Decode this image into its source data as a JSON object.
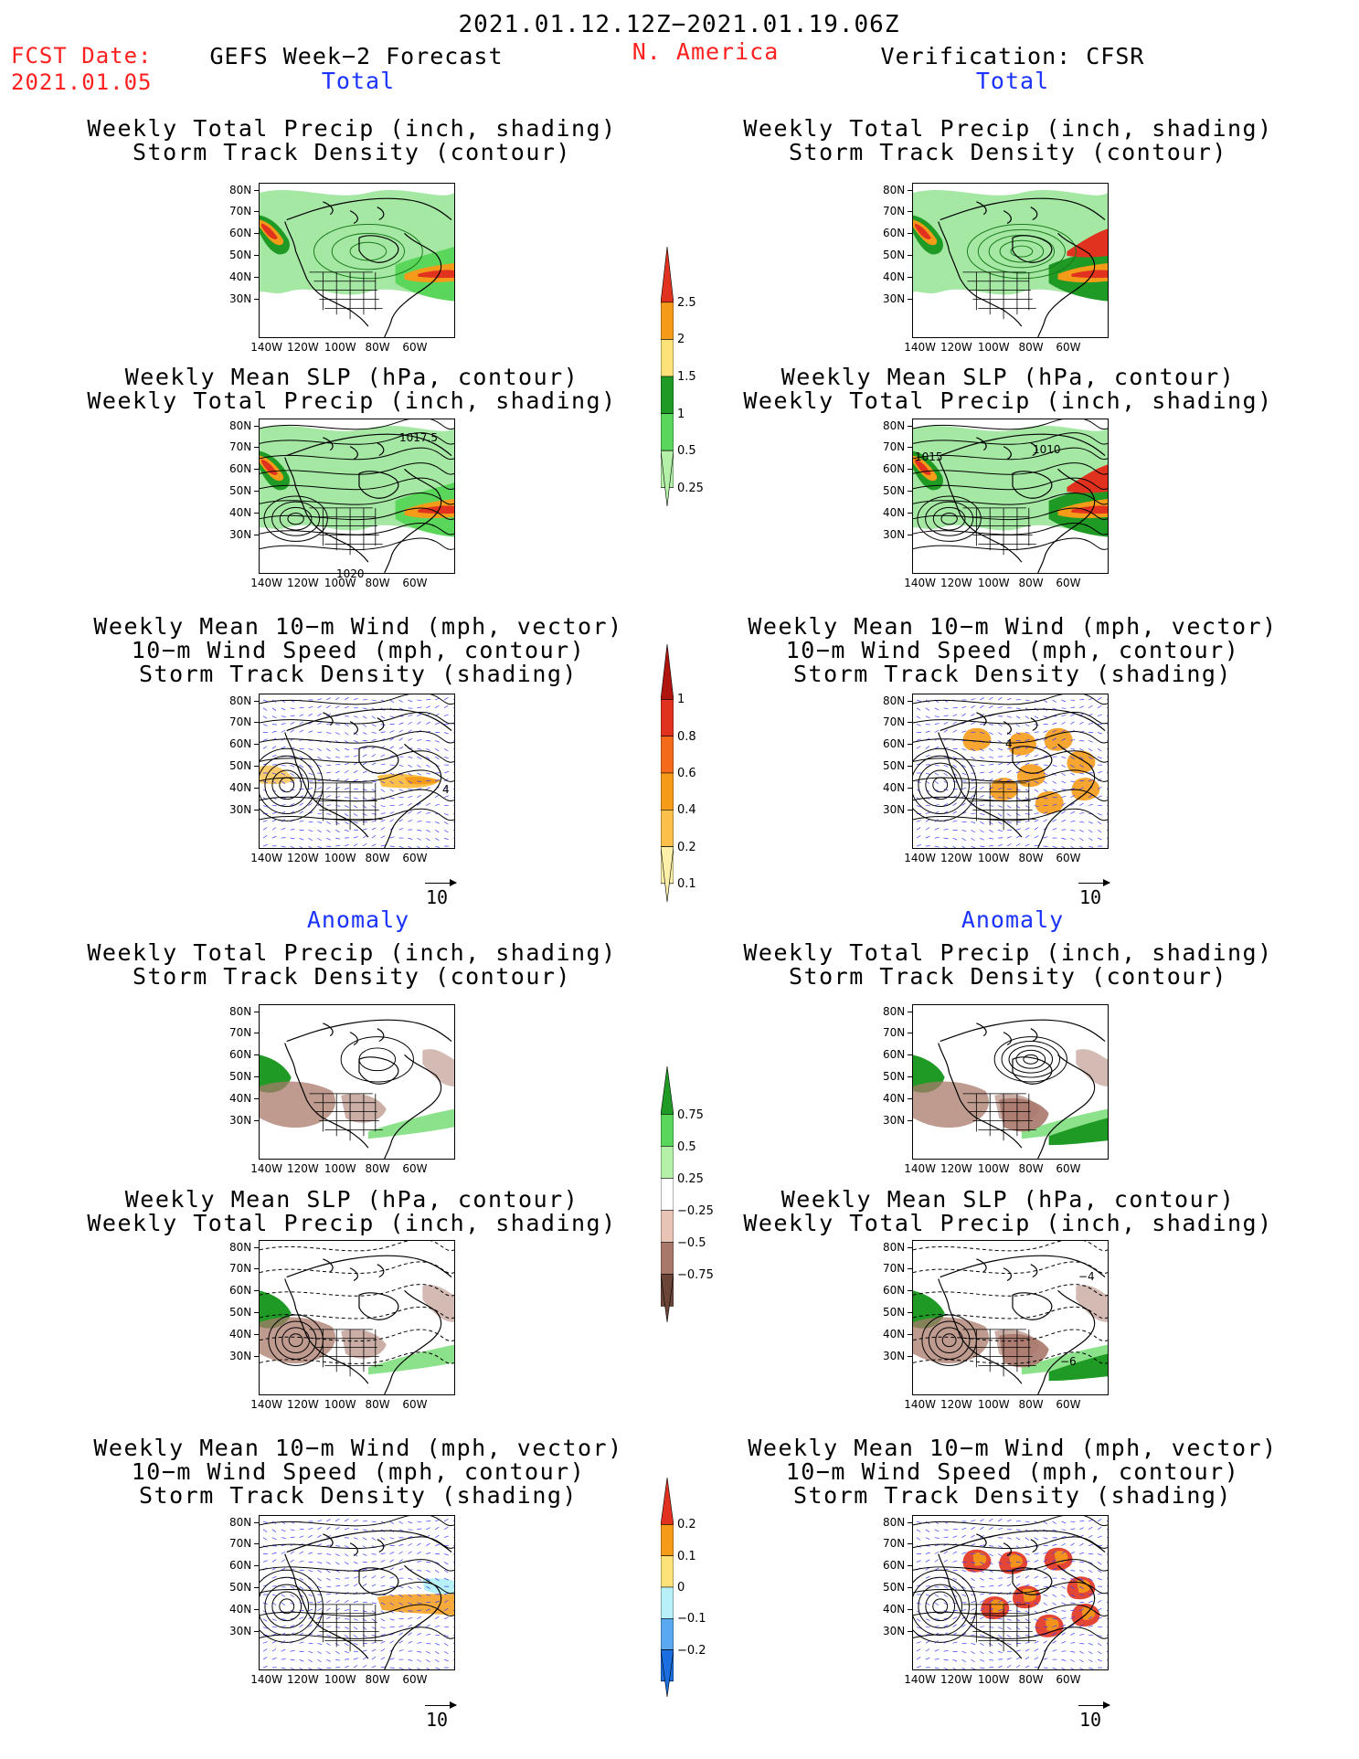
{
  "header": {
    "period": "2021.01.12.12Z−2021.01.19.06Z",
    "fcst_label": "FCST Date:",
    "fcst_date": "2021.01.05",
    "left_title": "GEFS Week−2 Forecast",
    "region": "N. America",
    "right_title": "Verification: CFSR"
  },
  "sections": {
    "total": "Total",
    "anomaly": "Anomaly"
  },
  "panel_titles": {
    "precip_storm": [
      "Weekly Total Precip (inch, shading)",
      "Storm Track Density (contour)"
    ],
    "slp_precip": [
      "Weekly Mean SLP (hPa, contour)",
      "Weekly Total Precip (inch, shading)"
    ],
    "wind_storm": [
      "Weekly Mean 10−m Wind (mph, vector)",
      "10−m Wind Speed (mph, contour)",
      "Storm Track Density (shading)"
    ]
  },
  "axes": {
    "lat_labels": [
      "80N",
      "70N",
      "60N",
      "50N",
      "40N",
      "30N"
    ],
    "lon_labels": [
      "140W",
      "120W",
      "100W",
      "80W",
      "60W"
    ]
  },
  "contour_labels": {
    "fcst_slp_high": "1017.5",
    "fcst_slp_low": "1020",
    "verif_slp_high": "1010",
    "verif_slp_left": "1015",
    "verif_anom_slp_a": "−4",
    "verif_anom_slp_b": "−6",
    "fcst_wind_a": "4",
    "verif_wind_a": "4"
  },
  "vector_reference": "10",
  "colorbars": {
    "precip_total": {
      "labels": [
        "2.5",
        "2",
        "1.5",
        "1",
        "0.5",
        "0.25"
      ],
      "colors": [
        "#e0321e",
        "#f59b1a",
        "#fde27a",
        "#1f9a24",
        "#5ad65a",
        "#b5f0a8"
      ]
    },
    "storm_total": {
      "labels": [
        "1",
        "0.8",
        "0.6",
        "0.4",
        "0.2",
        "0.1"
      ],
      "colors": [
        "#b0140e",
        "#e0321e",
        "#f26a1a",
        "#f59b1a",
        "#fbc04a",
        "#fdf0a8"
      ]
    },
    "precip_anom": {
      "labels": [
        "0.75",
        "0.5",
        "0.25",
        "−0.25",
        "−0.5",
        "−0.75"
      ],
      "colors": [
        "#1f9a24",
        "#5ad65a",
        "#b5f0a8",
        "#ffffff",
        "#e8c4b4",
        "#a8786a",
        "#6b4538"
      ]
    },
    "storm_anom": {
      "labels": [
        "0.2",
        "0.1",
        "0",
        "−0.1",
        "−0.2"
      ],
      "colors": [
        "#e0321e",
        "#f59b1a",
        "#fde27a",
        "#b8f0f8",
        "#5aa8f0",
        "#1a6ee0"
      ]
    }
  },
  "colors": {
    "accent_red": "#ff2020",
    "accent_blue": "#1a33ff",
    "precip_green": "#5ad65a",
    "precip_dark_green": "#1f9a24",
    "precip_orange": "#f59b1a",
    "precip_red": "#e0321e",
    "anom_brown": "#a8786a",
    "wind_vector_blue": "#3a3aff"
  }
}
